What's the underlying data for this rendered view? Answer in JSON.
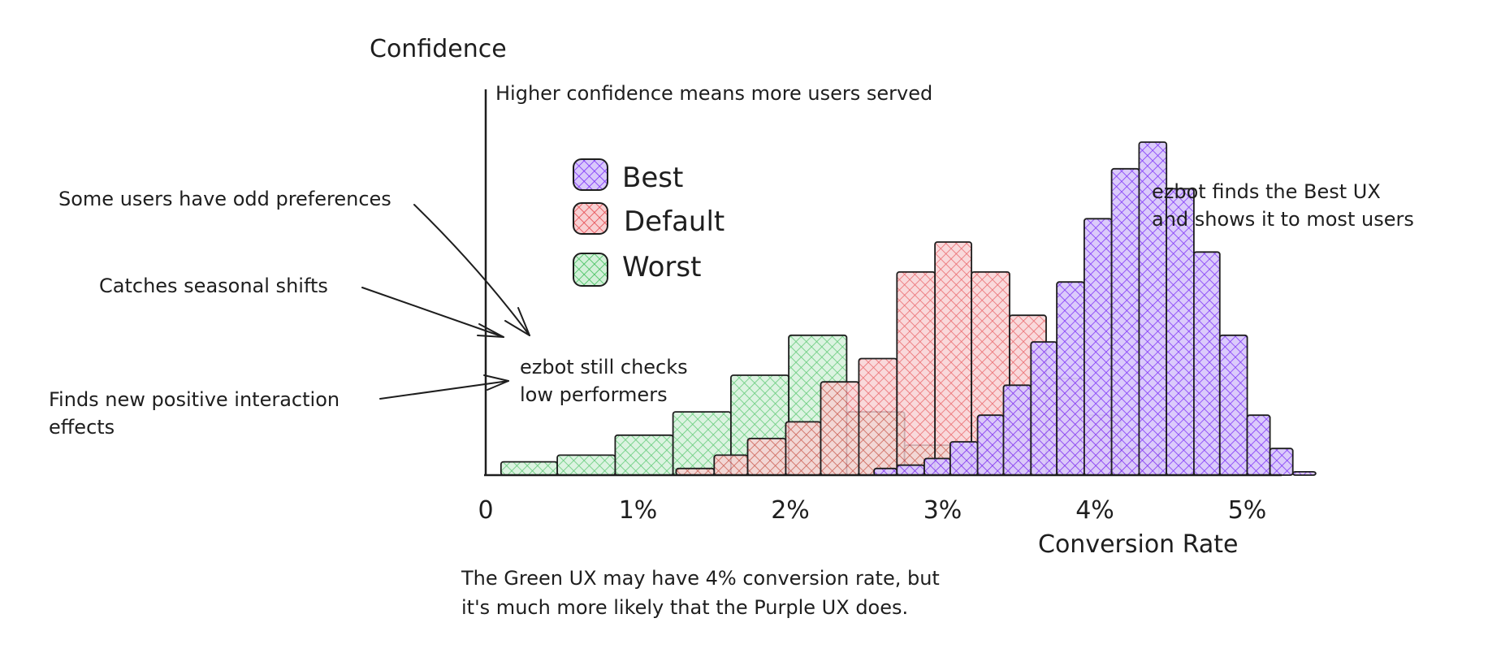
{
  "colors": {
    "best": "#7b2ff7",
    "default": "#e5484d",
    "worst": "#3fbf5a",
    "best_fill": "#d9c8fb",
    "default_fill": "#f8d0d2",
    "worst_fill": "#d3f0d9",
    "ink": "#1e1e1e"
  },
  "chart_data": {
    "type": "bar",
    "ylabel": "Confidence",
    "xlabel": "Conversion Rate",
    "ylabel_note": "Higher confidence means more users served",
    "xlim": [
      0,
      5.3
    ],
    "ylim": [
      0,
      100
    ],
    "x_ticks": [
      {
        "value": 0,
        "label": "0"
      },
      {
        "value": 1,
        "label": "1%"
      },
      {
        "value": 2,
        "label": "2%"
      },
      {
        "value": 3,
        "label": "3%"
      },
      {
        "value": 4,
        "label": "4%"
      },
      {
        "value": 5,
        "label": "5%"
      }
    ],
    "legend": [
      {
        "key": "best",
        "label": "Best"
      },
      {
        "key": "default",
        "label": "Default"
      },
      {
        "key": "worst",
        "label": "Worst"
      }
    ],
    "legend_placement": "upper-left",
    "series": [
      {
        "key": "worst",
        "name": "Worst",
        "bars": [
          {
            "x0": 0.1,
            "x1": 0.47,
            "y": 4
          },
          {
            "x0": 0.47,
            "x1": 0.85,
            "y": 6
          },
          {
            "x0": 0.85,
            "x1": 1.23,
            "y": 12
          },
          {
            "x0": 1.23,
            "x1": 1.61,
            "y": 19
          },
          {
            "x0": 1.61,
            "x1": 1.99,
            "y": 30
          },
          {
            "x0": 1.99,
            "x1": 2.37,
            "y": 42
          },
          {
            "x0": 2.37,
            "x1": 2.75,
            "y": 19
          },
          {
            "x0": 2.75,
            "x1": 3.13,
            "y": 9
          },
          {
            "x0": 3.13,
            "x1": 3.51,
            "y": 7
          },
          {
            "x0": 3.51,
            "x1": 3.89,
            "y": 3
          }
        ]
      },
      {
        "key": "default",
        "name": "Default",
        "bars": [
          {
            "x0": 1.25,
            "x1": 1.5,
            "y": 2
          },
          {
            "x0": 1.5,
            "x1": 1.72,
            "y": 6
          },
          {
            "x0": 1.72,
            "x1": 1.97,
            "y": 11
          },
          {
            "x0": 1.97,
            "x1": 2.2,
            "y": 16
          },
          {
            "x0": 2.2,
            "x1": 2.45,
            "y": 28
          },
          {
            "x0": 2.45,
            "x1": 2.7,
            "y": 35
          },
          {
            "x0": 2.7,
            "x1": 2.95,
            "y": 61
          },
          {
            "x0": 2.95,
            "x1": 3.19,
            "y": 70
          },
          {
            "x0": 3.19,
            "x1": 3.44,
            "y": 61
          },
          {
            "x0": 3.44,
            "x1": 3.68,
            "y": 48
          },
          {
            "x0": 3.68,
            "x1": 3.93,
            "y": 29
          },
          {
            "x0": 3.93,
            "x1": 4.17,
            "y": 18
          },
          {
            "x0": 4.17,
            "x1": 4.42,
            "y": 8
          }
        ]
      },
      {
        "key": "best",
        "name": "Best",
        "bars": [
          {
            "x0": 2.55,
            "x1": 2.7,
            "y": 2
          },
          {
            "x0": 2.7,
            "x1": 2.88,
            "y": 3
          },
          {
            "x0": 2.88,
            "x1": 3.05,
            "y": 5
          },
          {
            "x0": 3.05,
            "x1": 3.23,
            "y": 10
          },
          {
            "x0": 3.23,
            "x1": 3.4,
            "y": 18
          },
          {
            "x0": 3.4,
            "x1": 3.58,
            "y": 27
          },
          {
            "x0": 3.58,
            "x1": 3.75,
            "y": 40
          },
          {
            "x0": 3.75,
            "x1": 3.93,
            "y": 58
          },
          {
            "x0": 3.93,
            "x1": 4.11,
            "y": 77
          },
          {
            "x0": 4.11,
            "x1": 4.29,
            "y": 92
          },
          {
            "x0": 4.29,
            "x1": 4.47,
            "y": 100
          },
          {
            "x0": 4.47,
            "x1": 4.65,
            "y": 86
          },
          {
            "x0": 4.65,
            "x1": 4.82,
            "y": 67
          },
          {
            "x0": 4.82,
            "x1": 5.0,
            "y": 42
          },
          {
            "x0": 5.0,
            "x1": 5.15,
            "y": 18
          },
          {
            "x0": 5.15,
            "x1": 5.3,
            "y": 8
          },
          {
            "x0": 5.3,
            "x1": 5.45,
            "y": 1
          }
        ]
      }
    ]
  },
  "annotations": {
    "best_ux_line1": "ezbot finds the Best UX",
    "best_ux_line2": "and shows it to most users",
    "odd_preferences": "Some users have odd preferences",
    "seasonal_shifts": "Catches seasonal shifts",
    "still_checks_line1": "ezbot still checks",
    "still_checks_line2": "low performers",
    "interaction_line1": "Finds new positive interaction",
    "interaction_line2": "effects",
    "caption_line1": "The Green UX may have 4% conversion rate, but",
    "caption_line2": "it's much more likely that the Purple UX does."
  }
}
